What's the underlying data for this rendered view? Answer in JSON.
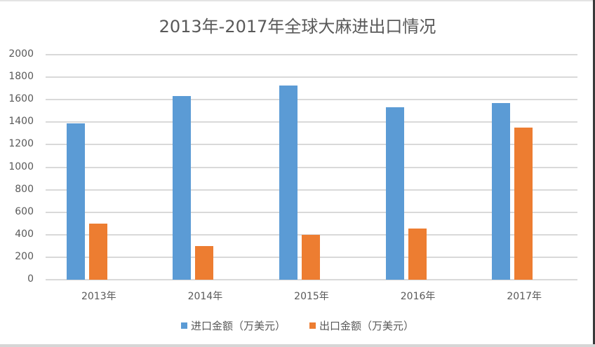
{
  "chart_data": {
    "type": "bar",
    "title": "2013年-2017年全球大麻进出口情况",
    "xlabel": "",
    "ylabel": "",
    "categories": [
      "2013年",
      "2014年",
      "2015年",
      "2016年",
      "2017年"
    ],
    "series": [
      {
        "name": "进口金额（万美元）",
        "color": "#5b9bd5",
        "values": [
          1390,
          1630,
          1725,
          1530,
          1570
        ]
      },
      {
        "name": "出口金额（万美元）",
        "color": "#ed7d31",
        "values": [
          500,
          300,
          400,
          455,
          1350
        ]
      }
    ],
    "ylim": [
      0,
      2000
    ],
    "yticks": [
      0,
      200,
      400,
      600,
      800,
      1000,
      1200,
      1400,
      1600,
      1800,
      2000
    ],
    "grid": true,
    "legend_position": "bottom"
  }
}
